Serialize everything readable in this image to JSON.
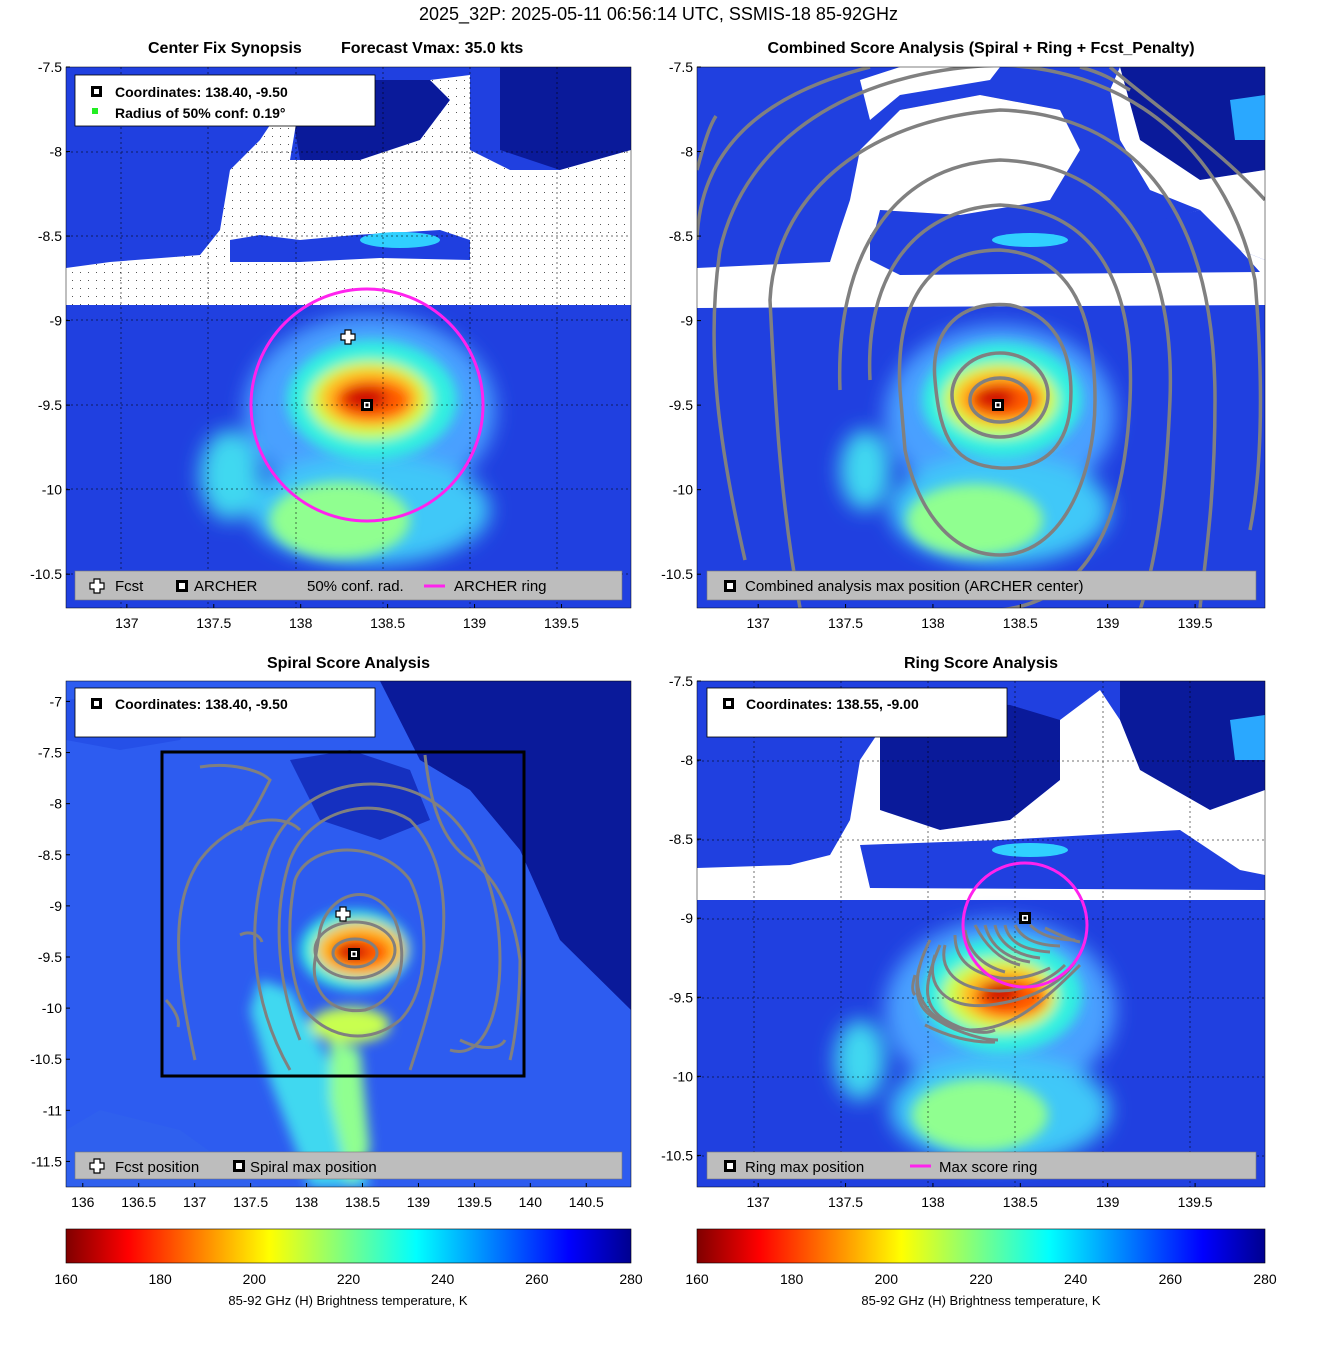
{
  "figure": {
    "suptitle": "2025_32P: 2025-05-11 06:56:14 UTC, SSMIS-18 85-92GHz"
  },
  "colors": {
    "archer_ring": "#ff22ee",
    "contour": "#808080",
    "legend_bg": "#bdbdbd",
    "background_field": "#1f3fe0",
    "cold_core": "#d81b00",
    "missing_data": "#ffffff"
  },
  "panels": {
    "p1": {
      "title_left": "Center Fix Synopsis",
      "title_right": "Forecast Vmax: 35.0 kts",
      "info_line1": "Coordinates: 138.40, -9.50",
      "info_line2": "Radius of 50% conf: 0.19°",
      "legend": {
        "fcst": "Fcst",
        "archer": "ARCHER",
        "conf": "50% conf. rad.",
        "ring": "ARCHER ring"
      }
    },
    "p2": {
      "title": "Combined Score Analysis (Spiral + Ring + Fcst_Penalty)",
      "legend": {
        "max": "Combined analysis max position (ARCHER center)"
      }
    },
    "p3": {
      "title": "Spiral Score Analysis",
      "info_line1": "Coordinates: 138.40, -9.50",
      "legend": {
        "fcst": "Fcst position",
        "max": "Spiral max position"
      }
    },
    "p4": {
      "title": "Ring Score Analysis",
      "info_line1": "Coordinates: 138.55, -9.00",
      "legend": {
        "max": "Ring max position",
        "ring": "Max score ring"
      }
    }
  },
  "colorbar": {
    "label": "85-92 GHz (H) Brightness temperature, K",
    "ticks": [
      "160",
      "180",
      "200",
      "220",
      "240",
      "260",
      "280"
    ],
    "range": [
      160,
      280
    ],
    "colormap": "jet_reversed"
  },
  "chart_data": [
    {
      "type": "heatmap",
      "panel": "Center Fix Synopsis",
      "xlim": [
        136.65,
        139.9
      ],
      "ylim": [
        -10.7,
        -7.5
      ],
      "xticks": [
        137,
        137.5,
        138,
        138.5,
        139,
        139.5
      ],
      "yticks": [
        -7.5,
        -8,
        -8.5,
        -9,
        -9.5,
        -10,
        -10.5
      ],
      "xtick_labels": [
        "137",
        "137.5",
        "138",
        "138.5",
        "139",
        "139.5"
      ],
      "ytick_labels": [
        "-7.5",
        "-8",
        "-8.5",
        "-9",
        "-9.5",
        "-10",
        "-10.5"
      ],
      "archer_center": [
        138.4,
        -9.5
      ],
      "forecast_position": [
        138.3,
        -9.1
      ],
      "archer_ring_radius_deg": 0.68,
      "grid": true
    },
    {
      "type": "heatmap",
      "panel": "Combined Score Analysis",
      "xlim": [
        136.65,
        139.9
      ],
      "ylim": [
        -10.7,
        -7.5
      ],
      "xticks": [
        137,
        137.5,
        138,
        138.5,
        139,
        139.5
      ],
      "yticks": [
        -7.5,
        -8,
        -8.5,
        -9,
        -9.5,
        -10,
        -10.5
      ],
      "xtick_labels": [
        "137",
        "137.5",
        "138",
        "138.5",
        "139",
        "139.5"
      ],
      "ytick_labels": [
        "-7.5",
        "-8",
        "-8.5",
        "-9",
        "-9.5",
        "-10",
        "-10.5"
      ],
      "combined_max": [
        138.4,
        -9.5
      ],
      "grid": false
    },
    {
      "type": "heatmap",
      "panel": "Spiral Score Analysis",
      "xlim": [
        135.85,
        140.9
      ],
      "ylim": [
        -11.75,
        -6.8
      ],
      "xticks": [
        136,
        136.5,
        137,
        137.5,
        138,
        138.5,
        139,
        139.5,
        140,
        140.5
      ],
      "yticks": [
        -7,
        -7.5,
        -8,
        -8.5,
        -9,
        -9.5,
        -10,
        -10.5,
        -11,
        -11.5
      ],
      "xtick_labels": [
        "136",
        "136.5",
        "137",
        "137.5",
        "138",
        "138.5",
        "139",
        "139.5",
        "140",
        "140.5"
      ],
      "ytick_labels": [
        "-7",
        "-7.5",
        "-8",
        "-8.5",
        "-9",
        "-9.5",
        "-10",
        "-10.5",
        "-11",
        "-11.5"
      ],
      "spiral_max": [
        138.4,
        -9.5
      ],
      "forecast_position": [
        138.3,
        -9.1
      ],
      "analysis_box": [
        136.7,
        -10.7,
        139.95,
        -7.5
      ],
      "grid": false
    },
    {
      "type": "heatmap",
      "panel": "Ring Score Analysis",
      "xlim": [
        136.65,
        139.9
      ],
      "ylim": [
        -10.7,
        -7.5
      ],
      "xticks": [
        137,
        137.5,
        138,
        138.5,
        139,
        139.5
      ],
      "yticks": [
        -7.5,
        -8,
        -8.5,
        -9,
        -9.5,
        -10,
        -10.5
      ],
      "xtick_labels": [
        "137",
        "137.5",
        "138",
        "138.5",
        "139",
        "139.5"
      ],
      "ytick_labels": [
        "-7.5",
        "-8",
        "-8.5",
        "-9",
        "-9.5",
        "-10",
        "-10.5"
      ],
      "ring_max": [
        138.55,
        -9.0
      ],
      "max_score_ring_radius_deg": 0.36,
      "grid": true
    }
  ]
}
